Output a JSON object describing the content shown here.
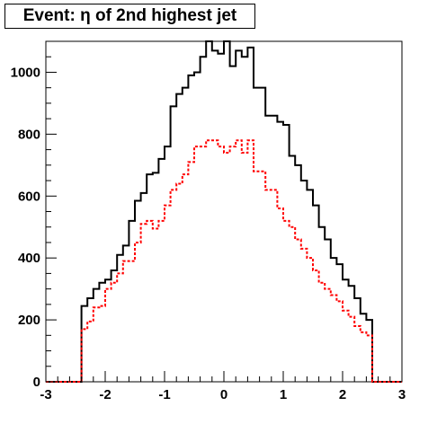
{
  "title": "Event: η of 2nd highest jet",
  "colors": {
    "series_black": "#000000",
    "series_red": "#ff0000",
    "axis": "#000000",
    "background": "#ffffff"
  },
  "chart_data": {
    "type": "line",
    "title": "Event: η of 2nd highest jet",
    "xlabel": "",
    "ylabel": "",
    "xlim": [
      -3,
      3
    ],
    "ylim": [
      0,
      1100
    ],
    "x_ticks": [
      -3,
      -2,
      -1,
      0,
      1,
      2,
      3
    ],
    "y_ticks": [
      0,
      200,
      400,
      600,
      800,
      1000
    ],
    "grid": false,
    "bin_edges": [
      -3.0,
      -2.9,
      -2.8,
      -2.7,
      -2.6,
      -2.5,
      -2.4,
      -2.3,
      -2.2,
      -2.1,
      -2.0,
      -1.9,
      -1.8,
      -1.7,
      -1.6,
      -1.5,
      -1.4,
      -1.3,
      -1.2,
      -1.1,
      -1.0,
      -0.9,
      -0.8,
      -0.7,
      -0.6,
      -0.5,
      -0.4,
      -0.3,
      -0.2,
      -0.1,
      0.0,
      0.1,
      0.2,
      0.3,
      0.4,
      0.5,
      0.6,
      0.7,
      0.8,
      0.9,
      1.0,
      1.1,
      1.2,
      1.3,
      1.4,
      1.5,
      1.6,
      1.7,
      1.8,
      1.9,
      2.0,
      2.1,
      2.2,
      2.3,
      2.4,
      2.5,
      2.6,
      2.7,
      2.8,
      2.9,
      3.0
    ],
    "series": [
      {
        "color": "#000000",
        "style": "solid",
        "values": [
          0,
          0,
          0,
          0,
          0,
          0,
          245,
          270,
          300,
          320,
          330,
          360,
          410,
          440,
          520,
          585,
          610,
          670,
          675,
          720,
          760,
          890,
          930,
          950,
          990,
          1000,
          1050,
          1100,
          1070,
          1060,
          1100,
          1020,
          1070,
          1050,
          1080,
          950,
          950,
          860,
          860,
          840,
          830,
          730,
          700,
          650,
          620,
          570,
          500,
          460,
          400,
          380,
          330,
          310,
          270,
          220,
          200,
          0,
          0,
          0,
          0,
          0
        ]
      },
      {
        "color": "#ff0000",
        "style": "dashed",
        "values": [
          0,
          0,
          0,
          0,
          0,
          0,
          170,
          195,
          240,
          245,
          300,
          320,
          350,
          390,
          390,
          450,
          510,
          520,
          495,
          520,
          570,
          620,
          640,
          670,
          710,
          760,
          760,
          780,
          780,
          760,
          740,
          760,
          780,
          740,
          780,
          680,
          680,
          620,
          620,
          560,
          520,
          500,
          460,
          430,
          400,
          360,
          320,
          300,
          280,
          260,
          230,
          210,
          180,
          160,
          150,
          0,
          0,
          0,
          0,
          0
        ]
      }
    ]
  }
}
